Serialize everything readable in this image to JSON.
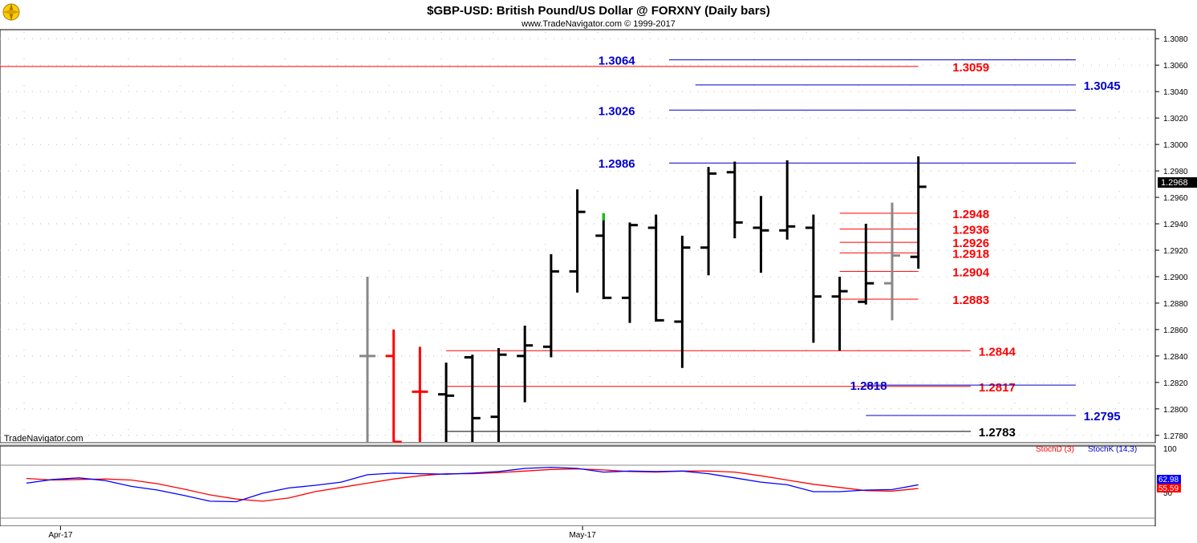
{
  "header": {
    "title": "$GBP-USD:  British Pound/US Dollar @ FORXNY  (Daily bars)",
    "subtitle": "www.TradeNavigator.com © 1999-2017",
    "watermark": "TradeNavigator.com"
  },
  "chart_data": [
    {
      "type": "ohlc",
      "title": "$GBP-USD:  British Pound/US Dollar @ FORXNY  (Daily bars)",
      "ylim": [
        1.2775,
        1.3085
      ],
      "yticks": [
        1.278,
        1.28,
        1.282,
        1.284,
        1.286,
        1.288,
        1.29,
        1.292,
        1.294,
        1.296,
        1.298,
        1.3,
        1.302,
        1.304,
        1.306,
        1.308
      ],
      "ytick_labels": [
        "1.2780",
        "1.2800",
        "1.2820",
        "1.2840",
        "1.2860",
        "1.2880",
        "1.2900",
        "1.2920",
        "1.2940",
        "1.2960",
        "1.2980",
        "1.3000",
        "1.3020",
        "1.3040",
        "1.3060",
        "1.3080"
      ],
      "xtick_labels": [
        {
          "label": "Apr-17",
          "bar": -11.7
        },
        {
          "label": "May-17",
          "bar": 8.2
        }
      ],
      "last_price": "1.2968",
      "grid": true,
      "bars": [
        {
          "i": 0,
          "open": 1.284,
          "high": 1.29,
          "low": 1.2775,
          "close": 1.284,
          "color": "#888888"
        },
        {
          "i": 1,
          "open": 1.284,
          "high": 1.286,
          "low": 1.2775,
          "close": 1.2775,
          "color": "#ff0000"
        },
        {
          "i": 2,
          "open": 1.2813,
          "high": 1.2847,
          "low": 1.2775,
          "close": 1.2813,
          "color": "#ff0000"
        },
        {
          "i": 3,
          "open": 1.2811,
          "high": 1.2835,
          "low": 1.2775,
          "close": 1.281,
          "color": "#000000"
        },
        {
          "i": 4,
          "open": 1.2839,
          "high": 1.2841,
          "low": 1.2775,
          "close": 1.2793,
          "color": "#000000"
        },
        {
          "i": 5,
          "open": 1.2794,
          "high": 1.2846,
          "low": 1.2775,
          "close": 1.2841,
          "color": "#000000"
        },
        {
          "i": 6,
          "open": 1.284,
          "high": 1.2863,
          "low": 1.2805,
          "close": 1.2848,
          "color": "#000000"
        },
        {
          "i": 7,
          "open": 1.2847,
          "high": 1.2917,
          "low": 1.2839,
          "close": 1.2904,
          "color": "#000000"
        },
        {
          "i": 8,
          "open": 1.2904,
          "high": 1.2966,
          "low": 1.2888,
          "close": 1.2949,
          "color": "#000000"
        },
        {
          "i": 9,
          "open": 1.2931,
          "high": 1.2948,
          "low": 1.2883,
          "close": 1.2884,
          "color": "#000000",
          "hi_color": "#00cc00"
        },
        {
          "i": 10,
          "open": 1.2884,
          "high": 1.2941,
          "low": 1.2865,
          "close": 1.2939,
          "color": "#000000"
        },
        {
          "i": 11,
          "open": 1.2937,
          "high": 1.2947,
          "low": 1.2866,
          "close": 1.2867,
          "color": "#000000"
        },
        {
          "i": 12,
          "open": 1.2866,
          "high": 1.2931,
          "low": 1.2831,
          "close": 1.2922,
          "color": "#000000"
        },
        {
          "i": 13,
          "open": 1.2922,
          "high": 1.2983,
          "low": 1.2901,
          "close": 1.2978,
          "color": "#000000"
        },
        {
          "i": 14,
          "open": 1.2979,
          "high": 1.2987,
          "low": 1.2929,
          "close": 1.2941,
          "color": "#000000"
        },
        {
          "i": 15,
          "open": 1.2937,
          "high": 1.2961,
          "low": 1.2903,
          "close": 1.2935,
          "color": "#000000"
        },
        {
          "i": 16,
          "open": 1.2935,
          "high": 1.2988,
          "low": 1.2928,
          "close": 1.2938,
          "color": "#000000"
        },
        {
          "i": 17,
          "open": 1.2937,
          "high": 1.2947,
          "low": 1.285,
          "close": 1.2885,
          "color": "#000000"
        },
        {
          "i": 18,
          "open": 1.2885,
          "high": 1.29,
          "low": 1.2844,
          "close": 1.2889,
          "color": "#000000"
        },
        {
          "i": 19,
          "open": 1.2881,
          "high": 1.294,
          "low": 1.2879,
          "close": 1.2895,
          "color": "#000000"
        },
        {
          "i": 20,
          "open": 1.2895,
          "high": 1.2956,
          "low": 1.2867,
          "close": 1.2916,
          "color": "#888888"
        },
        {
          "i": 21,
          "open": 1.2915,
          "high": 1.2991,
          "low": 1.2906,
          "close": 1.2968,
          "color": "#000000"
        }
      ],
      "levels": [
        {
          "value": 1.3059,
          "label": "1.3059",
          "color": "#ff0000",
          "from": -99,
          "to": 21,
          "label_bar": 22.3
        },
        {
          "value": 1.3064,
          "label": "1.3064",
          "color": "#0000cc",
          "from": 11.5,
          "to": 27,
          "label_bar": 8.8
        },
        {
          "value": 1.3045,
          "label": "1.3045",
          "color": "#0000cc",
          "from": 12.5,
          "to": 27,
          "label_bar": 27.3
        },
        {
          "value": 1.3026,
          "label": "1.3026",
          "color": "#0000cc",
          "from": 11.5,
          "to": 27,
          "label_bar": 8.8
        },
        {
          "value": 1.2986,
          "label": "1.2986",
          "color": "#0000cc",
          "from": 11.5,
          "to": 27,
          "label_bar": 8.8
        },
        {
          "value": 1.2948,
          "label": "1.2948",
          "color": "#ff0000",
          "from": 18,
          "to": 21,
          "label_bar": 22.3
        },
        {
          "value": 1.2936,
          "label": "1.2936",
          "color": "#ff0000",
          "from": 18,
          "to": 21,
          "label_bar": 22.3
        },
        {
          "value": 1.2926,
          "label": "1.2926",
          "color": "#ff0000",
          "from": 18,
          "to": 21,
          "label_bar": 22.3
        },
        {
          "value": 1.2918,
          "label": "1.2918",
          "color": "#ff0000",
          "from": 18,
          "to": 21,
          "label_bar": 22.3
        },
        {
          "value": 1.2904,
          "label": "1.2904",
          "color": "#ff0000",
          "from": 18,
          "to": 21,
          "label_bar": 22.3
        },
        {
          "value": 1.2883,
          "label": "1.2883",
          "color": "#ff0000",
          "from": 18,
          "to": 21,
          "label_bar": 22.3
        },
        {
          "value": 1.2844,
          "label": "1.2844",
          "color": "#ff0000",
          "from": 3,
          "to": 23,
          "label_bar": 23.3
        },
        {
          "value": 1.2817,
          "label": "1.2817",
          "color": "#ff0000",
          "from": 3,
          "to": 23,
          "label_bar": 23.3
        },
        {
          "value": 1.2818,
          "label": "1.2818",
          "color": "#0000cc",
          "from": 19,
          "to": 27,
          "label_bar": 18.4
        },
        {
          "value": 1.2795,
          "label": "1.2795",
          "color": "#0000cc",
          "from": 19,
          "to": 27,
          "label_bar": 27.3
        },
        {
          "value": 1.2783,
          "label": "1.2783",
          "color": "#000000",
          "from": 3,
          "to": 23,
          "label_bar": 23.3
        }
      ]
    },
    {
      "type": "line",
      "ylim": [
        0,
        100
      ],
      "ytick_labels": [
        {
          "label": "100",
          "value": 100
        },
        {
          "label": "50",
          "value": 50
        }
      ],
      "legend": [
        "StochD (3)",
        "StochK (14,3)"
      ],
      "series": [
        {
          "name": "StochD (3)",
          "color": "#ff0000",
          "last_label": "55.59",
          "x": [
            -13,
            -12,
            -11,
            -10,
            -9,
            -8,
            -7,
            -6,
            -5,
            -4,
            -3,
            -2,
            -1,
            0,
            1,
            2,
            3,
            4,
            5,
            6,
            7,
            8,
            9,
            10,
            11,
            12,
            13,
            14,
            15,
            16,
            17,
            18,
            19,
            20,
            21
          ],
          "values": [
            75,
            72,
            73,
            74,
            72,
            65,
            55,
            44,
            36,
            32,
            38,
            50,
            58,
            66,
            74,
            80,
            84,
            84,
            86,
            89,
            92,
            93,
            91,
            88,
            87,
            89,
            89,
            87,
            80,
            72,
            64,
            58,
            52,
            51,
            56
          ]
        },
        {
          "name": "StochK (14,3)",
          "color": "#0000ff",
          "last_label": "62.98",
          "x": [
            -13,
            -12,
            -11,
            -10,
            -9,
            -8,
            -7,
            -6,
            -5,
            -4,
            -3,
            -2,
            -1,
            0,
            1,
            2,
            3,
            4,
            5,
            6,
            7,
            8,
            9,
            10,
            11,
            12,
            13,
            14,
            15,
            16,
            17,
            18,
            19,
            20,
            21
          ],
          "values": [
            66,
            73,
            76,
            71,
            60,
            53,
            43,
            32,
            31,
            47,
            57,
            62,
            68,
            82,
            85,
            84,
            83,
            85,
            88,
            94,
            96,
            94,
            87,
            89,
            88,
            89,
            84,
            76,
            68,
            63,
            50,
            50,
            53,
            54,
            63
          ]
        }
      ]
    }
  ]
}
